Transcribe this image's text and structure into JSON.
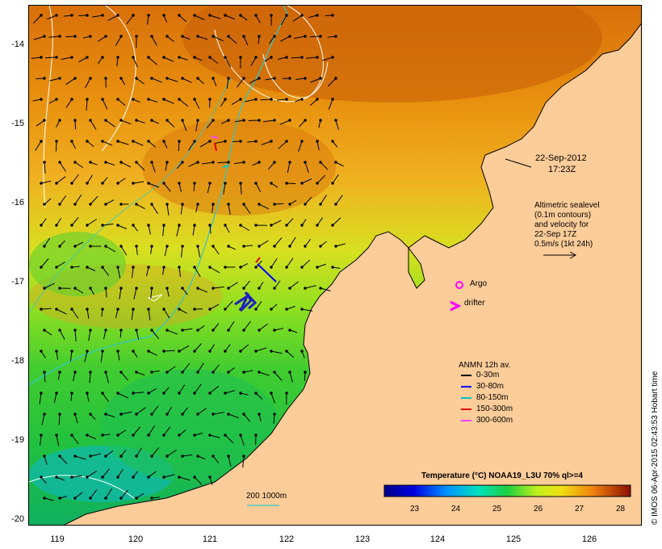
{
  "map": {
    "date_label": "22-Sep-2012",
    "time_label": "17:23Z",
    "sealevel_note": [
      "Altimetric sealevel",
      "(0.1m contours)",
      "and velocity for",
      "22-Sep 17Z",
      "0.5m/s (1kt 24h)"
    ],
    "lat_ticks": [
      "-14",
      "-15",
      "-16",
      "-17",
      "-18",
      "-19",
      "-20"
    ],
    "lon_ticks": [
      "119",
      "120",
      "121",
      "122",
      "123",
      "124",
      "125",
      "126"
    ],
    "argo_label": "Argo",
    "drifter_label": "drifter",
    "anmn_title": "ANMN 12h av.",
    "anmn_items": [
      {
        "label": "0-30m",
        "color": "#000000"
      },
      {
        "label": "30-80m",
        "color": "#0000ff"
      },
      {
        "label": "80-150m",
        "color": "#00c8c8"
      },
      {
        "label": "150-300m",
        "color": "#e00000"
      },
      {
        "label": "300-600m",
        "color": "#ff40ff"
      }
    ],
    "depth_contours": "200  1000m",
    "colorbar_title": "Temperature (°C) NOAA19_L3U 70% ql>=4",
    "colorbar_ticks": [
      "23",
      "24",
      "25",
      "26",
      "27",
      "28"
    ],
    "credit": "© IMOS 06-Apr-2015 02:43:53 Hobart time",
    "colors": {
      "land": "#fccc99",
      "warm_sea": "#e0780a",
      "mid_sea": "#f0c020",
      "cool_sea": "#a0e020",
      "cold_sea": "#30c040",
      "cyan_contour": "#30c8c8",
      "white_contour": "#ffffff"
    }
  }
}
